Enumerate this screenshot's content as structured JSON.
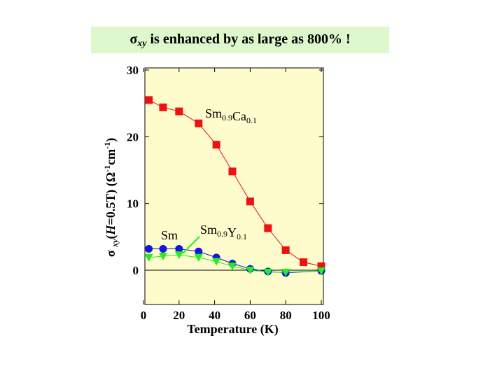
{
  "banner": {
    "symbol": "σ",
    "subscript": "xy",
    "text": " is enhanced by as large as  800% !"
  },
  "colors": {
    "plot_background": "#fefccc",
    "banner_background": "#ddf8cc",
    "sm_ca_series": "#ee1111",
    "sm_series": "#1515dd",
    "sm_y_series": "#22ee22"
  },
  "chart_data": {
    "type": "line",
    "title": "",
    "xlabel": "Temperature (K)",
    "ylabel": "σ xy(H=0.5T) (Ω-1cm-1)",
    "xlim": [
      0,
      100
    ],
    "ylim": [
      -6,
      30
    ],
    "xticks": [
      0,
      20,
      40,
      60,
      80,
      100
    ],
    "yticks": [
      0,
      10,
      20,
      30
    ],
    "grid": false,
    "zero_line": true,
    "series": [
      {
        "name": "Sm0.9Ca0.1",
        "color": "#ee1111",
        "marker": "square",
        "x": [
          3,
          11,
          20,
          31,
          41,
          50,
          60,
          70,
          80,
          90,
          100
        ],
        "y": [
          25.5,
          24.4,
          23.8,
          22,
          18.8,
          14.8,
          10.3,
          6.3,
          3,
          1.2,
          0.6
        ]
      },
      {
        "name": "Sm",
        "color": "#1515dd",
        "marker": "circle",
        "x": [
          3,
          11,
          20,
          31,
          41,
          50,
          60,
          70,
          80,
          100
        ],
        "y": [
          3.2,
          3.2,
          3.2,
          2.8,
          1.9,
          1,
          0.2,
          -0.2,
          -0.4,
          -0.1
        ]
      },
      {
        "name": "Sm0.9Y0.1",
        "color": "#22ee22",
        "marker": "triangle-down",
        "x": [
          3,
          11,
          20,
          31,
          41,
          50,
          60,
          70,
          80,
          100
        ],
        "y": [
          1.9,
          2.1,
          2.3,
          1.9,
          1.3,
          0.6,
          0,
          -0.3,
          -0.3,
          -0.1
        ]
      }
    ],
    "annotations": [
      {
        "label": "Sm",
        "base": "Sm",
        "sub": ""
      },
      {
        "label": "Sm0.9Ca0.1",
        "parts": [
          [
            "Sm",
            "0.9"
          ],
          [
            "Ca",
            "0.1"
          ]
        ]
      },
      {
        "label": "Sm0.9Y0.1",
        "parts": [
          [
            "Sm",
            "0.9"
          ],
          [
            "Y",
            "0.1"
          ]
        ]
      }
    ]
  }
}
